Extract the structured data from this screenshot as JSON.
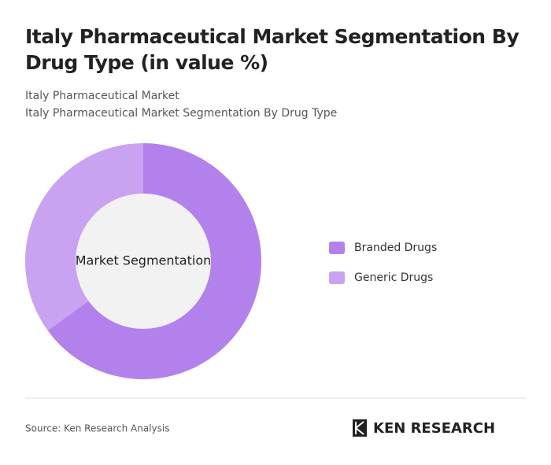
{
  "chart_data": {
    "type": "donut",
    "title": "Italy Pharmaceutical Market Segmentation By Drug Type (in value %)",
    "subtitle": [
      "Italy Pharmaceutical Market",
      "Italy Pharmaceutical Market Segmentation By Drug Type"
    ],
    "center_label": "Market Segmentation",
    "categories": [
      "Branded Drugs",
      "Generic Drugs"
    ],
    "values": [
      65,
      35
    ],
    "colors": [
      "#b381ec",
      "#c9a2f1"
    ],
    "source": "Source: Ken Research Analysis",
    "logo": "KEN RESEARCH"
  }
}
